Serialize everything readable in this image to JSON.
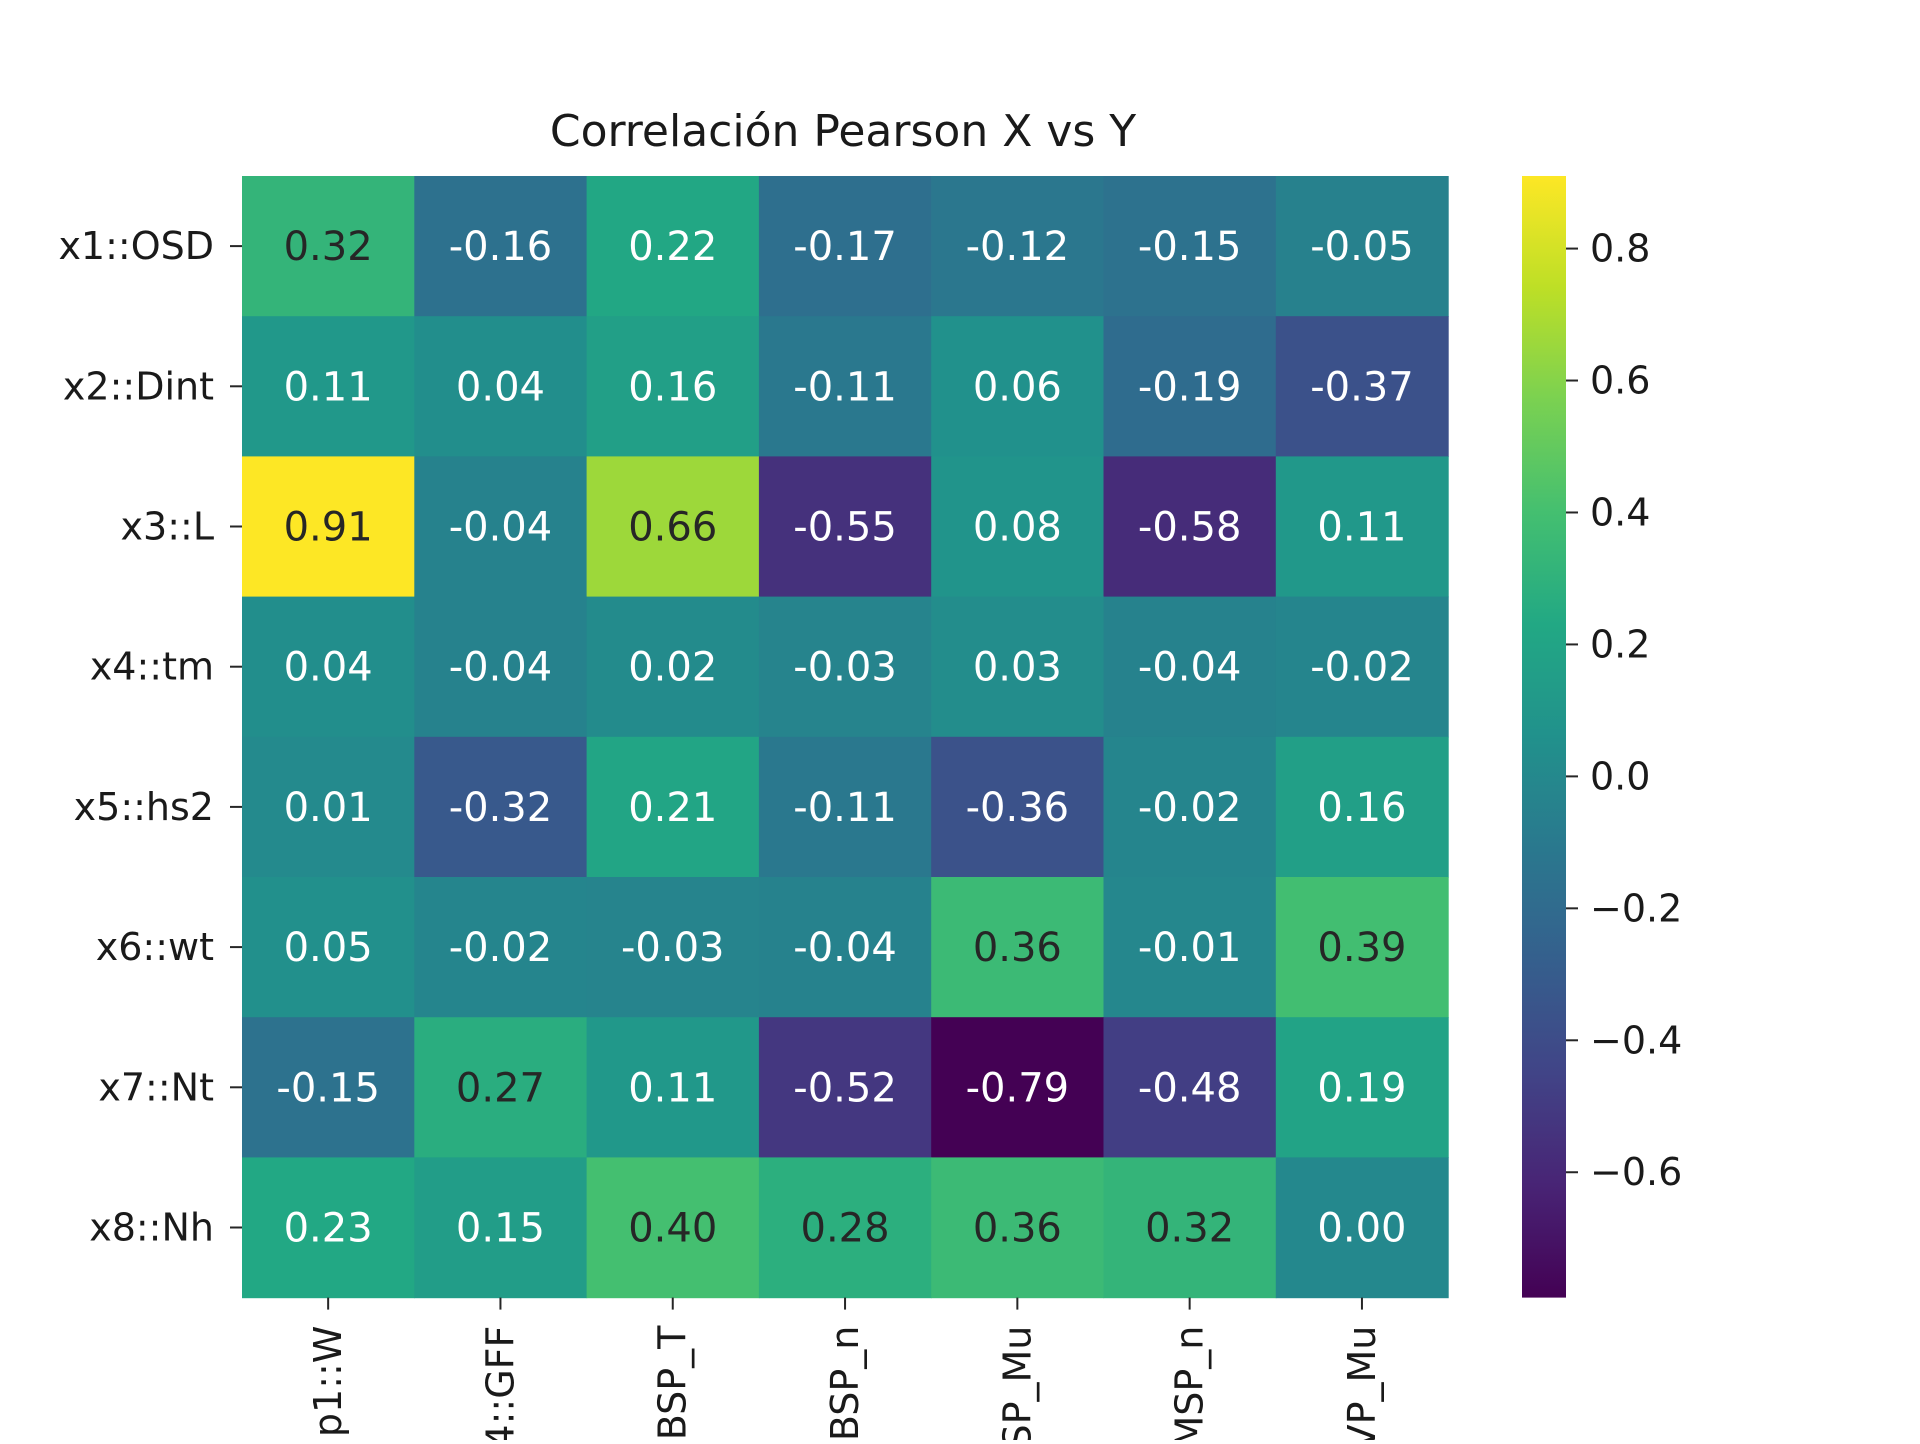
{
  "chart_data": {
    "type": "heatmap",
    "title": "Correlación Pearson X vs Y",
    "rows": [
      "x1::OSD",
      "x2::Dint",
      "x3::L",
      "x4::tm",
      "x5::hs2",
      "x6::wt",
      "x7::Nt",
      "x8::Nh"
    ],
    "columns": [
      "p1::W",
      "4::GFF",
      "BSP_T",
      "BSP_n",
      "SP_Mu",
      "MSP_n",
      "VP_Mu"
    ],
    "values": [
      [
        0.32,
        -0.16,
        0.22,
        -0.17,
        -0.12,
        -0.15,
        -0.05
      ],
      [
        0.11,
        0.04,
        0.16,
        -0.11,
        0.06,
        -0.19,
        -0.37
      ],
      [
        0.91,
        -0.04,
        0.66,
        -0.55,
        0.08,
        -0.58,
        0.11
      ],
      [
        0.04,
        -0.04,
        0.02,
        -0.03,
        0.03,
        -0.04,
        -0.02
      ],
      [
        0.01,
        -0.32,
        0.21,
        -0.11,
        -0.36,
        -0.02,
        0.16
      ],
      [
        0.05,
        -0.02,
        -0.03,
        -0.04,
        0.36,
        -0.01,
        0.39
      ],
      [
        -0.15,
        0.27,
        0.11,
        -0.52,
        -0.79,
        -0.48,
        0.19
      ],
      [
        0.23,
        0.15,
        0.4,
        0.28,
        0.36,
        0.32,
        0.0
      ]
    ],
    "value_labels": [
      [
        "0.32",
        "-0.16",
        "0.22",
        "-0.17",
        "-0.12",
        "-0.15",
        "-0.05"
      ],
      [
        "0.11",
        "0.04",
        "0.16",
        "-0.11",
        "0.06",
        "-0.19",
        "-0.37"
      ],
      [
        "0.91",
        "-0.04",
        "0.66",
        "-0.55",
        "0.08",
        "-0.58",
        "0.11"
      ],
      [
        "0.04",
        "-0.04",
        "0.02",
        "-0.03",
        "0.03",
        "-0.04",
        "-0.02"
      ],
      [
        "0.01",
        "-0.32",
        "0.21",
        "-0.11",
        "-0.36",
        "-0.02",
        "0.16"
      ],
      [
        "0.05",
        "-0.02",
        "-0.03",
        "-0.04",
        "0.36",
        "-0.01",
        "0.39"
      ],
      [
        "-0.15",
        "0.27",
        "0.11",
        "-0.52",
        "-0.79",
        "-0.48",
        "0.19"
      ],
      [
        "0.23",
        "0.15",
        "0.40",
        "0.28",
        "0.36",
        "0.32",
        "0.00"
      ]
    ],
    "colormap": "viridis",
    "vmin": -0.79,
    "vmax": 0.91,
    "colorbar_ticks": [
      0.8,
      0.6,
      0.4,
      0.2,
      0.0,
      -0.2,
      -0.4,
      -0.6
    ],
    "colorbar_tick_labels": [
      "0.8",
      "0.6",
      "0.4",
      "0.2",
      "0.0",
      "−0.2",
      "−0.4",
      "−0.6"
    ],
    "colorbar_placement": "right",
    "xlabel": "",
    "ylabel": "",
    "grid": false
  }
}
